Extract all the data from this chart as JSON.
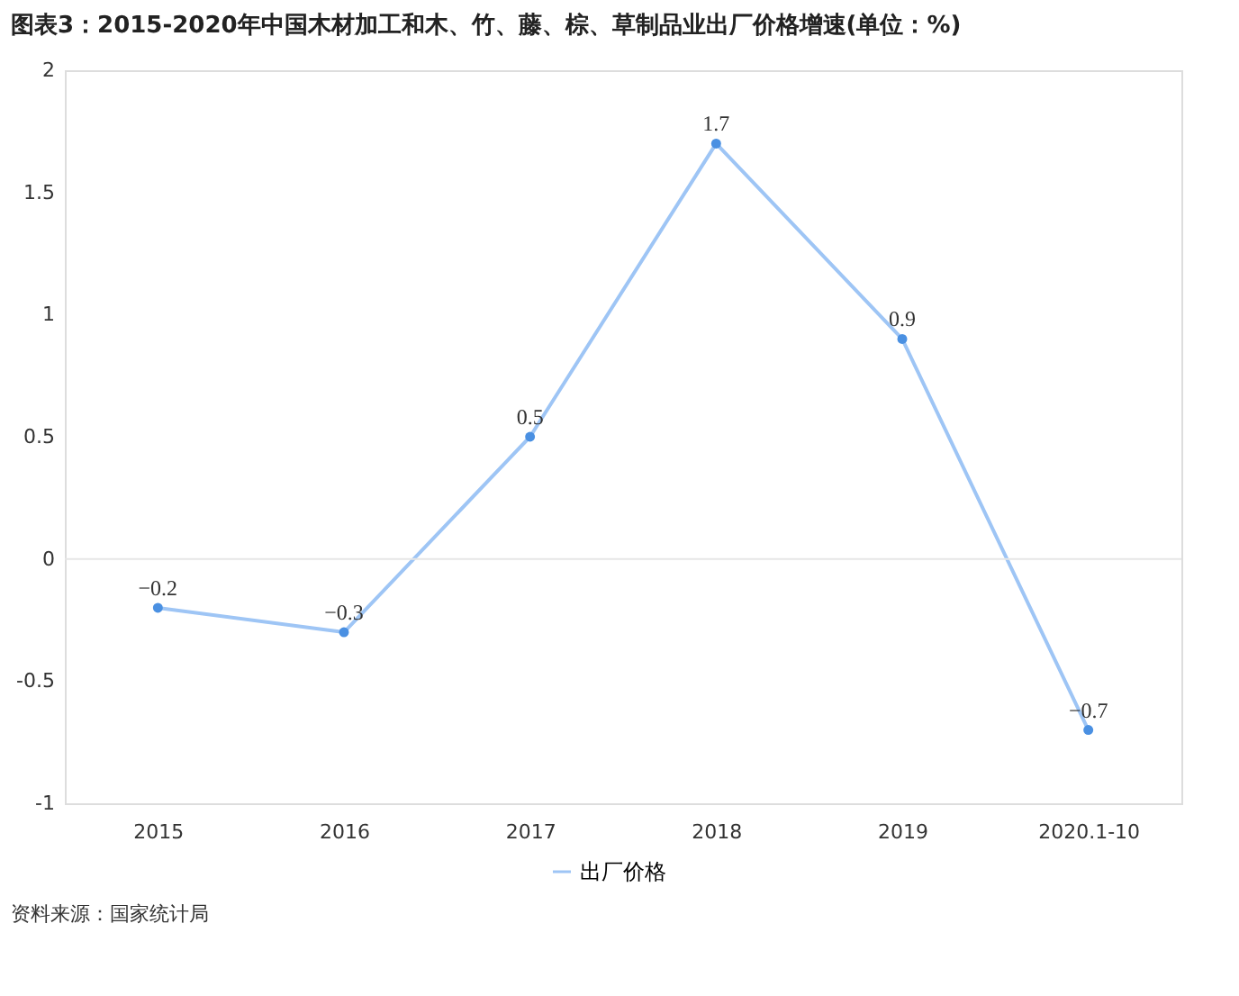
{
  "chart_data": {
    "type": "line",
    "title": "图表3：2015-2020年中国木材加工和木、竹、藤、棕、草制品业出厂价格增速(单位：%)",
    "categories": [
      "2015",
      "2016",
      "2017",
      "2018",
      "2019",
      "2020.1-10"
    ],
    "series": [
      {
        "name": "出厂价格",
        "color": "#9ec5f5",
        "values": [
          -0.2,
          -0.3,
          0.5,
          1.7,
          0.9,
          -0.7
        ]
      }
    ],
    "ylim": [
      -1,
      2
    ],
    "yticks": [
      {
        "value": -1,
        "label": "-1"
      },
      -0.5,
      {
        "value": 0,
        "label": "0"
      },
      0.5,
      {
        "value": 1,
        "label": "1"
      },
      1.5,
      {
        "value": 2,
        "label": "2"
      }
    ],
    "ref_lines": [
      {
        "axis": "y",
        "value": 0,
        "color": "#e6e6e6"
      }
    ],
    "data_labels": true,
    "marker": "circle",
    "line_style": "solid",
    "grid": false,
    "legend": "bottom",
    "annotations": [
      "资料来源：国家统计局"
    ]
  }
}
